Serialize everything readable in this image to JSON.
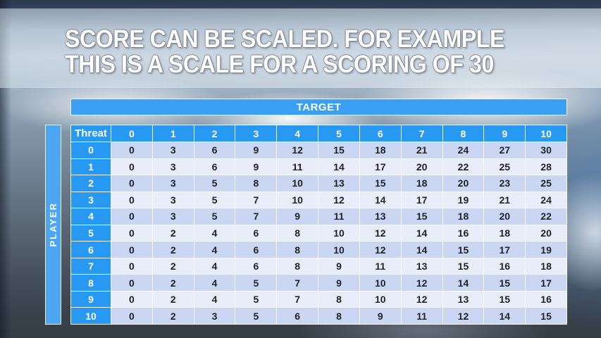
{
  "slide": {
    "title_line1": "SCORE CAN BE SCALED. FOR EXAMPLE",
    "title_line2": "THIS IS A SCALE FOR A SCORING OF 30"
  },
  "table": {
    "target_label": "TARGET",
    "player_label": "PLAYER",
    "corner_label": "Threat",
    "column_headers": [
      "0",
      "1",
      "2",
      "3",
      "4",
      "5",
      "6",
      "7",
      "8",
      "9",
      "10"
    ],
    "row_headers": [
      "0",
      "1",
      "2",
      "3",
      "4",
      "5",
      "6",
      "7",
      "8",
      "9",
      "10"
    ],
    "rows": [
      [
        0,
        3,
        6,
        9,
        12,
        15,
        18,
        21,
        24,
        27,
        30
      ],
      [
        0,
        3,
        6,
        9,
        11,
        14,
        17,
        20,
        22,
        25,
        28
      ],
      [
        0,
        3,
        5,
        8,
        10,
        13,
        15,
        18,
        20,
        23,
        25
      ],
      [
        0,
        3,
        5,
        7,
        10,
        12,
        14,
        17,
        19,
        21,
        24
      ],
      [
        0,
        3,
        5,
        7,
        9,
        11,
        13,
        15,
        18,
        20,
        22
      ],
      [
        0,
        2,
        4,
        6,
        8,
        10,
        12,
        14,
        16,
        18,
        20
      ],
      [
        0,
        2,
        4,
        6,
        8,
        10,
        12,
        14,
        15,
        17,
        19
      ],
      [
        0,
        2,
        4,
        6,
        8,
        9,
        11,
        13,
        15,
        16,
        18
      ],
      [
        0,
        2,
        4,
        5,
        7,
        9,
        10,
        12,
        14,
        15,
        17
      ],
      [
        0,
        2,
        4,
        5,
        7,
        8,
        10,
        12,
        13,
        15,
        16
      ],
      [
        0,
        2,
        3,
        5,
        6,
        8,
        9,
        11,
        12,
        14,
        15
      ]
    ]
  },
  "colors": {
    "target_band_blue": "#3BA0F5",
    "header_blue": "#2899F3",
    "player_bar_blue": "#4EA6F2",
    "row_band_even": "#CBD7F2",
    "row_band_odd": "#E9EDF9",
    "grid_line": "#F5F8FC",
    "header_text": "#FFFFFF",
    "cell_text": "#1E2126"
  }
}
